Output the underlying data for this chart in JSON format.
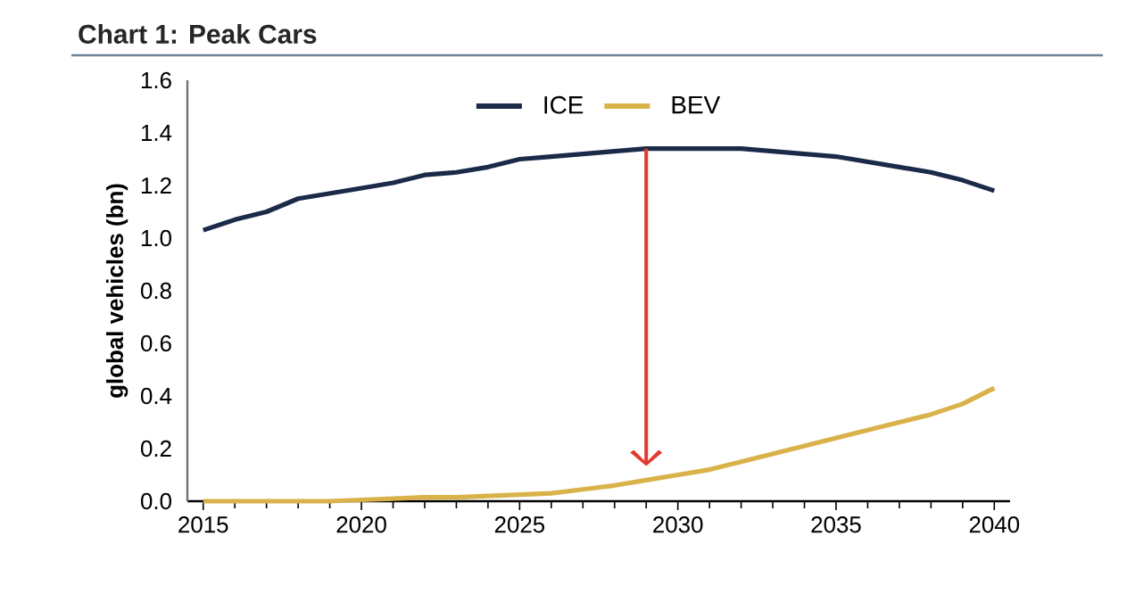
{
  "chart_data": {
    "type": "line",
    "title": "Chart 1: Peak Cars",
    "ylabel": "global vehicles (bn)",
    "x": [
      2015,
      2016,
      2017,
      2018,
      2019,
      2020,
      2021,
      2022,
      2023,
      2024,
      2025,
      2026,
      2027,
      2028,
      2029,
      2030,
      2031,
      2032,
      2033,
      2034,
      2035,
      2036,
      2037,
      2038,
      2039,
      2040
    ],
    "series": [
      {
        "name": "ICE",
        "color": "#1c2a4a",
        "values": [
          1.03,
          1.07,
          1.1,
          1.15,
          1.17,
          1.19,
          1.21,
          1.24,
          1.25,
          1.27,
          1.3,
          1.31,
          1.32,
          1.33,
          1.34,
          1.34,
          1.34,
          1.34,
          1.33,
          1.32,
          1.31,
          1.29,
          1.27,
          1.25,
          1.22,
          1.18
        ]
      },
      {
        "name": "BEV",
        "color": "#d9b24a",
        "values": [
          0.0,
          0.0,
          0.0,
          0.0,
          0.0,
          0.005,
          0.01,
          0.015,
          0.015,
          0.02,
          0.025,
          0.03,
          0.045,
          0.06,
          0.08,
          0.1,
          0.12,
          0.15,
          0.18,
          0.21,
          0.24,
          0.27,
          0.3,
          0.33,
          0.37,
          0.43
        ]
      }
    ],
    "xlim": [
      2014.5,
      2040.5
    ],
    "xticks": [
      2015,
      2020,
      2025,
      2030,
      2035,
      2040
    ],
    "ylim": [
      0,
      1.6
    ],
    "yticks": [
      {
        "value": 0,
        "label": "0.0"
      },
      {
        "value": 0.2,
        "label": "0.2"
      },
      {
        "value": 0.4,
        "label": "0.4"
      },
      {
        "value": 0.6,
        "label": "0.6"
      },
      {
        "value": 0.8,
        "label": "0.8"
      },
      {
        "value": 1.0,
        "label": "1.0"
      },
      {
        "value": 1.2,
        "label": "1.2"
      },
      {
        "value": 1.4,
        "label": "1.4"
      },
      {
        "value": 1.6,
        "label": "1.6"
      }
    ],
    "legend": "top",
    "grid": false,
    "marker": "none",
    "line_style": "solid"
  }
}
